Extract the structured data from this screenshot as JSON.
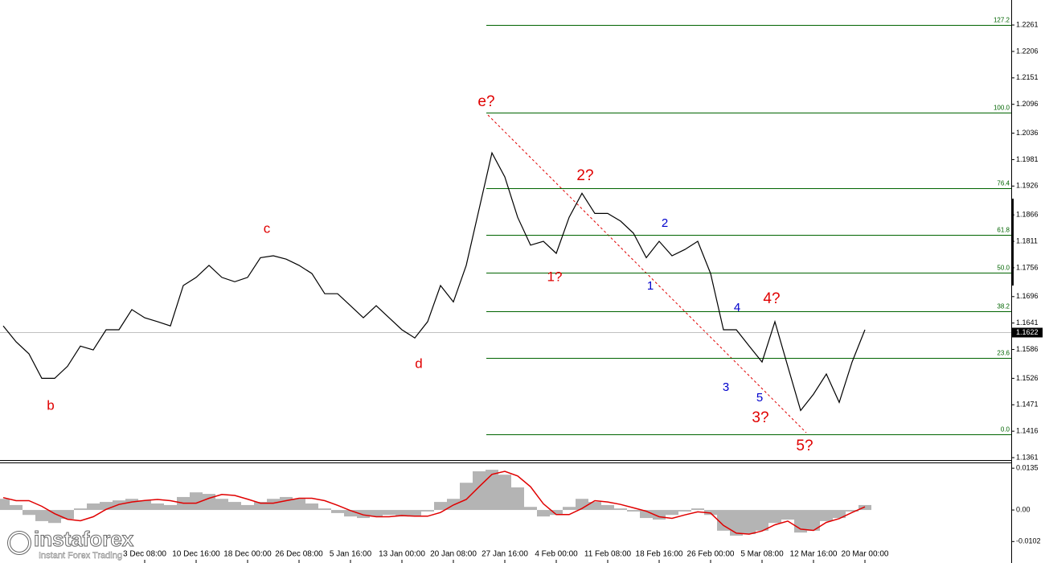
{
  "chart_data": [
    {
      "type": "line",
      "categories": [
        null,
        null,
        null,
        null,
        null,
        null,
        null,
        null,
        null,
        null,
        null,
        "3 Dec 08:00",
        null,
        null,
        null,
        "10 Dec 16:00",
        null,
        null,
        null,
        "18 Dec 00:00",
        null,
        null,
        null,
        "26 Dec 08:00",
        null,
        null,
        null,
        "5 Jan 16:00",
        null,
        null,
        null,
        "13 Jan 00:00",
        null,
        null,
        null,
        "20 Jan 08:00",
        null,
        null,
        null,
        "27 Jan 16:00",
        null,
        null,
        null,
        "4 Feb 00:00",
        null,
        null,
        null,
        "11 Feb 08:00",
        null,
        null,
        null,
        "18 Feb 16:00",
        null,
        null,
        null,
        "26 Feb 00:00",
        null,
        null,
        null,
        "5 Mar 08:00",
        null,
        null,
        null,
        "12 Mar 16:00",
        null,
        null,
        null,
        "20 Mar 00:00"
      ],
      "series": [
        {
          "color": "#000000",
          "values": [
            1.1635,
            1.1602,
            1.1577,
            1.1526,
            1.1526,
            1.1551,
            1.1593,
            1.1585,
            1.1627,
            1.1627,
            1.1669,
            1.1652,
            1.1644,
            1.1635,
            1.1719,
            1.1736,
            1.1761,
            1.1736,
            1.1727,
            1.1736,
            1.1777,
            1.1781,
            1.1774,
            1.1761,
            1.1744,
            1.1702,
            1.1702,
            1.1677,
            1.1652,
            1.1677,
            1.1652,
            1.1627,
            1.161,
            1.1644,
            1.1719,
            1.1685,
            1.1761,
            1.1878,
            1.1995,
            1.1945,
            1.1861,
            1.1803,
            1.1811,
            1.1786,
            1.1861,
            1.1911,
            1.1869,
            1.1869,
            1.1853,
            1.1828,
            1.1777,
            1.1811,
            1.1781,
            1.1794,
            1.1811,
            1.1744,
            1.1627,
            1.1627,
            1.1593,
            1.156,
            1.1644,
            1.1551,
            1.1459,
            1.1493,
            1.1535,
            1.1476,
            1.156,
            1.1627
          ]
        }
      ],
      "ylim": [
        1.1356,
        1.2313
      ],
      "yticks": [
        1.2261,
        1.2206,
        1.2151,
        1.2096,
        1.2036,
        1.1981,
        1.1926,
        1.1866,
        1.1811,
        1.1756,
        1.1696,
        1.1641,
        1.1586,
        1.1526,
        1.1471,
        1.1416,
        1.1361
      ],
      "fib_color": "#006400",
      "fib_levels": [
        {
          "label": "127.2",
          "price": 1.2261
        },
        {
          "label": "100.0",
          "price": 1.2079
        },
        {
          "label": "76.4",
          "price": 1.1922
        },
        {
          "label": "61.8",
          "price": 1.1824
        },
        {
          "label": "50.0",
          "price": 1.1745
        },
        {
          "label": "38.2",
          "price": 1.1666
        },
        {
          "label": "23.6",
          "price": 1.1569
        },
        {
          "label": "0.0",
          "price": 1.141
        }
      ],
      "current_price": 1.1622,
      "annotations": [
        {
          "text": "b",
          "color": "#e00000"
        },
        {
          "text": "c",
          "color": "#e00000"
        },
        {
          "text": "d",
          "color": "#e00000"
        },
        {
          "text": "e?",
          "color": "#e00000"
        },
        {
          "text": "1?",
          "color": "#e00000"
        },
        {
          "text": "2?",
          "color": "#e00000"
        },
        {
          "text": "3?",
          "color": "#e00000"
        },
        {
          "text": "4?",
          "color": "#e00000"
        },
        {
          "text": "5?",
          "color": "#e00000"
        },
        {
          "text": "1",
          "color": "#0000cc"
        },
        {
          "text": "2",
          "color": "#0000cc"
        },
        {
          "text": "3",
          "color": "#0000cc"
        },
        {
          "text": "4",
          "color": "#0000cc"
        },
        {
          "text": "5",
          "color": "#0000cc"
        }
      ],
      "watermark": {
        "brand": "instaforex",
        "slogan": "Instant Forex Trading"
      }
    },
    {
      "type": "macd",
      "series": [
        {
          "color": "#b4b4b4",
          "style": "bar",
          "values": [
            0.0036,
            0.0016,
            -0.0016,
            -0.0036,
            -0.0042,
            -0.0029,
            0.0005,
            0.0021,
            0.0026,
            0.0031,
            0.0036,
            0.0031,
            0.0021,
            0.0016,
            0.0042,
            0.0057,
            0.0052,
            0.0036,
            0.0026,
            0.0016,
            0.0026,
            0.0036,
            0.0042,
            0.0036,
            0.0021,
            0.0005,
            -0.001,
            -0.0021,
            -0.0026,
            -0.0021,
            -0.0016,
            -0.0021,
            -0.0021,
            -0.0005,
            0.0026,
            0.0036,
            0.0088,
            0.0125,
            0.013,
            0.0114,
            0.0073,
            0.001,
            -0.0021,
            -0.0016,
            0.001,
            0.0036,
            0.0026,
            0.0016,
            0.0005,
            -0.0005,
            -0.0026,
            -0.0031,
            -0.0016,
            -0.0005,
            0.0005,
            -0.0016,
            -0.0067,
            -0.0083,
            -0.0078,
            -0.0067,
            -0.0042,
            -0.0031,
            -0.0073,
            -0.0067,
            -0.0036,
            -0.0026,
            -0.0005,
            0.0016
          ]
        },
        {
          "color": "#e00000",
          "style": "line",
          "values": [
            0.004,
            0.003,
            0.003,
            0.0012,
            -0.0012,
            -0.003,
            -0.0035,
            -0.0022,
            0.0002,
            0.0018,
            0.0026,
            0.0031,
            0.0034,
            0.003,
            0.0022,
            0.0022,
            0.0038,
            0.005,
            0.0047,
            0.0035,
            0.0022,
            0.0022,
            0.003,
            0.0038,
            0.0038,
            0.003,
            0.0015,
            -0.0002,
            -0.0016,
            -0.0022,
            -0.0022,
            -0.0018,
            -0.002,
            -0.002,
            -0.0008,
            0.0016,
            0.0034,
            0.0075,
            0.0115,
            0.0125,
            0.011,
            0.0075,
            0.002,
            -0.0015,
            -0.0015,
            0.0005,
            0.003,
            0.0026,
            0.0018,
            0.0007,
            -0.0004,
            -0.0022,
            -0.0027,
            -0.0016,
            -0.0006,
            -0.001,
            -0.005,
            -0.0075,
            -0.0078,
            -0.0068,
            -0.0048,
            -0.0036,
            -0.0062,
            -0.0066,
            -0.004,
            -0.0028,
            -0.0008,
            0.001
          ]
        }
      ],
      "ylim": [
        -0.0161,
        0.0151
      ],
      "yticks": [
        0.0135,
        {
          "value": 0,
          "label": "0.00"
        },
        -0.0102
      ]
    }
  ]
}
